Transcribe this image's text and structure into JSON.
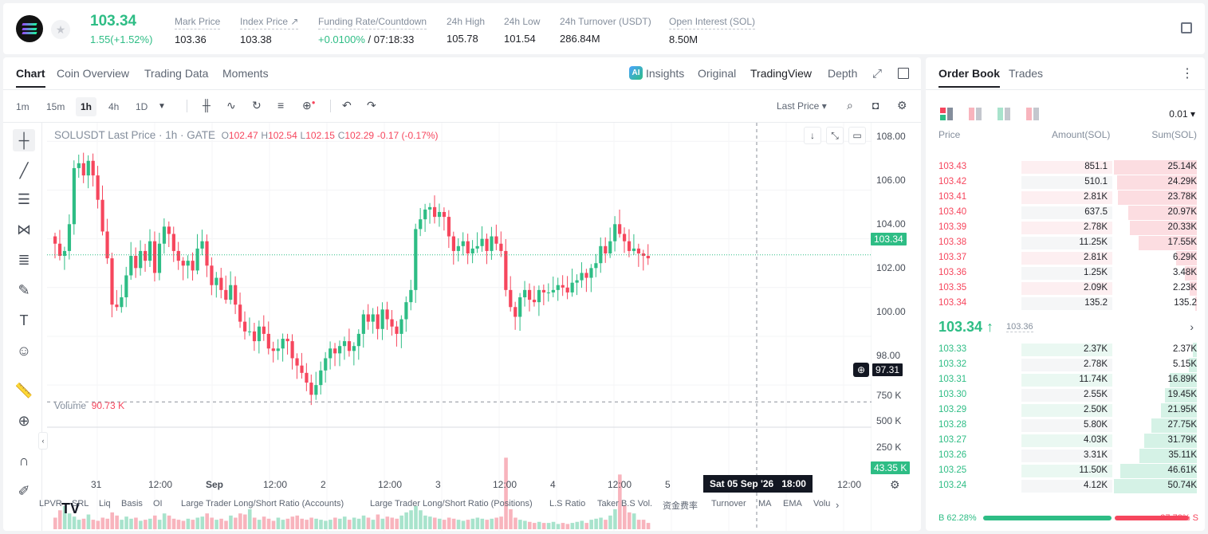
{
  "header": {
    "last_price": "103.34",
    "change": "1.55(+1.52%)",
    "stats": [
      {
        "label": "Mark Price",
        "value": "103.36"
      },
      {
        "label": "Index Price ↗",
        "value": "103.38"
      },
      {
        "label": "Funding Rate/Countdown",
        "value_green": "+0.0100%",
        "value": " / 07:18:33"
      },
      {
        "label": "24h High",
        "value": "105.78"
      },
      {
        "label": "24h Low",
        "value": "101.54"
      },
      {
        "label": "24h Turnover (USDT)",
        "value": "286.84M"
      },
      {
        "label": "Open Interest (SOL)",
        "value": "8.50M"
      }
    ]
  },
  "chart_tabs": [
    "Chart",
    "Coin Overview",
    "Trading Data",
    "Moments"
  ],
  "view_tabs": {
    "insights": "Insights",
    "original": "Original",
    "tradingview": "TradingView",
    "depth": "Depth",
    "ai": "AI"
  },
  "timeframes": [
    "1m",
    "15m",
    "1h",
    "4h",
    "1D"
  ],
  "last_price_select": "Last Price ▾",
  "legend": {
    "symbol": "SOLUSDT Last Price · 1h · GATE",
    "o": "O",
    "o_val": "102.47",
    "h": "H",
    "h_val": "102.54",
    "l": "L",
    "l_val": "102.15",
    "c": "C",
    "c_val": "102.29",
    "chg": "-0.17 (-0.17%)"
  },
  "volume_legend": {
    "label": "Volume",
    "value": "90.73 K"
  },
  "price_axis": [
    "108.00",
    "106.00",
    "104.00",
    "102.00",
    "100.00",
    "98.00"
  ],
  "volume_axis": [
    "750 K",
    "500 K",
    "250 K"
  ],
  "price_tags": {
    "current": "103.34",
    "cursor": "97.31",
    "volume": "43.35 K"
  },
  "time_axis": [
    "31",
    "12:00",
    "Sep",
    "12:00",
    "2",
    "12:00",
    "3",
    "12:00",
    "4",
    "12:00",
    "5",
    "12:00"
  ],
  "crosshair_time": "Sat 05 Sep '26   18:00",
  "indicators": [
    "LPVR",
    "SRL",
    "Liq",
    "Basis",
    "OI",
    "Large Trader Long/Short Ratio (Accounts)",
    "Large Trader Long/Short Ratio (Positions)",
    "L.S Ratio",
    "Taker B.S Vol.",
    "资金费率",
    "Turnover",
    "MA",
    "EMA",
    "Volu"
  ],
  "colors": {
    "up": "#2ebd85",
    "down": "#f6465d"
  },
  "orderbook": {
    "tabs": [
      "Order Book",
      "Trades"
    ],
    "precision": "0.01 ▾",
    "headers": {
      "price": "Price",
      "amount": "Amount(SOL)",
      "sum": "Sum(SOL)"
    },
    "asks": [
      {
        "price": "103.43",
        "amount": "851.1",
        "sum": "25.14K",
        "depth": 1.0
      },
      {
        "price": "103.42",
        "amount": "510.1",
        "sum": "24.29K",
        "depth": 0.96
      },
      {
        "price": "103.41",
        "amount": "2.81K",
        "sum": "23.78K",
        "depth": 0.95
      },
      {
        "price": "103.40",
        "amount": "637.5",
        "sum": "20.97K",
        "depth": 0.83
      },
      {
        "price": "103.39",
        "amount": "2.78K",
        "sum": "20.33K",
        "depth": 0.81
      },
      {
        "price": "103.38",
        "amount": "11.25K",
        "sum": "17.55K",
        "depth": 0.7
      },
      {
        "price": "103.37",
        "amount": "2.81K",
        "sum": "6.29K",
        "depth": 0.25
      },
      {
        "price": "103.36",
        "amount": "1.25K",
        "sum": "3.48K",
        "depth": 0.14
      },
      {
        "price": "103.35",
        "amount": "2.09K",
        "sum": "2.23K",
        "depth": 0.09
      },
      {
        "price": "103.34",
        "amount": "135.2",
        "sum": "135.2",
        "depth": 0.02
      }
    ],
    "mid_price": "103.34 ↑",
    "mid_mark": "103.36",
    "bids": [
      {
        "price": "103.33",
        "amount": "2.37K",
        "sum": "2.37K",
        "depth": 0.05
      },
      {
        "price": "103.32",
        "amount": "2.78K",
        "sum": "5.15K",
        "depth": 0.1
      },
      {
        "price": "103.31",
        "amount": "11.74K",
        "sum": "16.89K",
        "depth": 0.33
      },
      {
        "price": "103.30",
        "amount": "2.55K",
        "sum": "19.45K",
        "depth": 0.38
      },
      {
        "price": "103.29",
        "amount": "2.50K",
        "sum": "21.95K",
        "depth": 0.43
      },
      {
        "price": "103.28",
        "amount": "5.80K",
        "sum": "27.75K",
        "depth": 0.55
      },
      {
        "price": "103.27",
        "amount": "4.03K",
        "sum": "31.79K",
        "depth": 0.63
      },
      {
        "price": "103.26",
        "amount": "3.31K",
        "sum": "35.11K",
        "depth": 0.69
      },
      {
        "price": "103.25",
        "amount": "11.50K",
        "sum": "46.61K",
        "depth": 0.92
      },
      {
        "price": "103.24",
        "amount": "4.12K",
        "sum": "50.74K",
        "depth": 1.0
      }
    ],
    "buy_ratio": "B 62.28%",
    "sell_ratio": "37.72% S",
    "buy_fraction": 0.6228
  },
  "chart_data": {
    "type": "candlestick",
    "symbol": "SOLUSDT",
    "interval": "1h",
    "ylim": [
      96.5,
      108.5
    ],
    "y_ticks": [
      98,
      100,
      102,
      104,
      106,
      108
    ],
    "volume_ticks_k": [
      250,
      500,
      750
    ],
    "close_path": [
      103.8,
      103.3,
      103.5,
      104.6,
      106.9,
      107.1,
      106.6,
      107.2,
      106.6,
      105.6,
      104.3,
      103.2,
      101.3,
      101.2,
      101.6,
      102.5,
      103.3,
      102.8,
      103.5,
      103.1,
      103.9,
      102.6,
      103.8,
      104.5,
      104.2,
      103.5,
      103.1,
      102.9,
      103.1,
      102.7,
      103.6,
      103.9,
      102.9,
      102.1,
      102.4,
      101.9,
      101.5,
      102.1,
      101.3,
      100.6,
      100.2,
      100.2,
      99.8,
      100.4,
      100.1,
      99.5,
      99.4,
      99.5,
      99.9,
      99.8,
      99.1,
      98.8,
      98.5,
      98.1,
      97.6,
      98.0,
      98.6,
      99.1,
      99.5,
      99.3,
      99.6,
      99.8,
      99.4,
      99.6,
      100.1,
      100.9,
      100.6,
      100.9,
      100.3,
      101.1,
      100.7,
      100.4,
      100.1,
      100.7,
      101.4,
      101.9,
      104.4,
      104.8,
      105.2,
      105.3,
      104.9,
      105.1,
      104.9,
      104.1,
      103.5,
      103.7,
      103.9,
      103.4,
      103.6,
      103.7,
      104.0,
      103.5,
      104.1,
      103.8,
      103.5,
      101.9,
      101.2,
      100.8,
      101.6,
      101.9,
      101.5,
      101.4,
      101.9,
      101.8,
      101.8,
      101.9,
      102.1,
      102.0,
      101.8,
      102.2,
      102.3,
      102.6,
      102.4,
      102.8,
      103.0,
      103.7,
      103.4,
      103.9,
      104.6,
      104.2,
      103.9,
      103.5,
      103.6,
      103.4,
      103.3,
      103.2
    ],
    "volume_k": [
      110,
      180,
      220,
      150,
      120,
      90,
      100,
      140,
      90,
      80,
      110,
      100,
      160,
      130,
      90,
      120,
      100,
      110,
      80,
      90,
      100,
      130,
      90,
      150,
      130,
      100,
      90,
      80,
      100,
      90,
      110,
      120,
      150,
      110,
      90,
      100,
      80,
      130,
      110,
      150,
      140,
      190,
      110,
      90,
      120,
      100,
      80,
      110,
      90,
      100,
      120,
      130,
      100,
      90,
      110,
      100,
      90,
      80,
      90,
      110,
      100,
      120,
      90,
      110,
      100,
      130,
      110,
      90,
      140,
      100,
      120,
      110,
      100,
      130,
      160,
      180,
      220,
      180,
      130,
      120,
      110,
      100,
      90,
      110,
      100,
      90,
      80,
      90,
      100,
      110,
      100,
      90,
      100,
      110,
      120,
      680,
      190,
      110,
      90,
      80,
      70,
      60,
      70,
      60,
      60,
      70,
      50,
      60,
      50,
      60,
      70,
      80,
      60,
      90,
      100,
      110,
      90,
      130,
      190,
      520,
      230,
      160,
      150,
      90,
      90,
      60
    ]
  }
}
